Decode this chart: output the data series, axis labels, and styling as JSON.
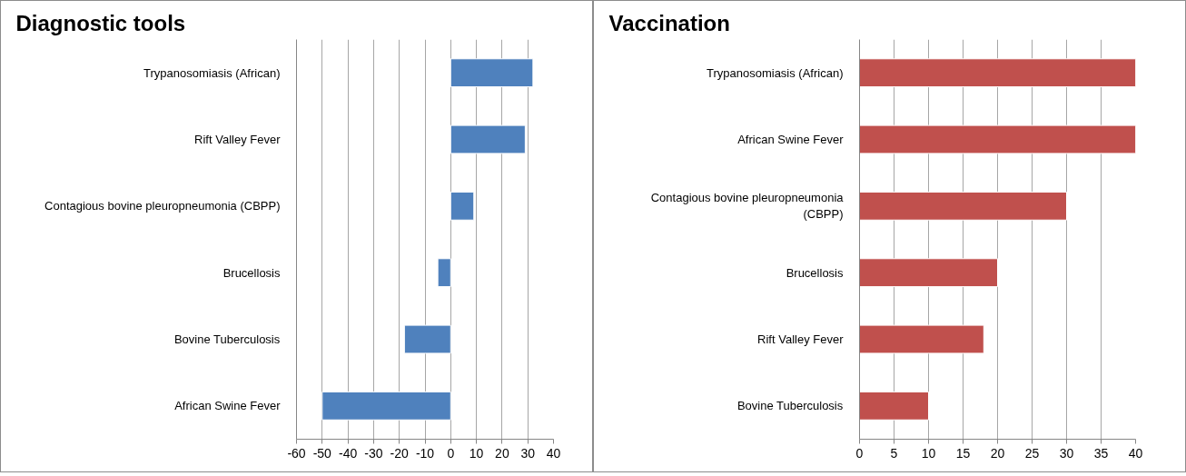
{
  "chart_data": [
    {
      "type": "bar",
      "orientation": "horizontal",
      "title": "Diagnostic tools",
      "categories": [
        "Trypanosomiasis (African)",
        "Rift Valley Fever",
        "Contagious bovine pleuropneumonia (CBPP)",
        "Brucellosis",
        "Bovine Tuberculosis",
        "African Swine Fever"
      ],
      "values": [
        32,
        29,
        9,
        -5,
        -18,
        -50
      ],
      "color": "#4f81bd",
      "xlim": [
        -60,
        40
      ],
      "xticks": [
        -60,
        -50,
        -40,
        -30,
        -20,
        -10,
        0,
        10,
        20,
        30,
        40
      ],
      "grid": "x"
    },
    {
      "type": "bar",
      "orientation": "horizontal",
      "title": "Vaccination",
      "categories": [
        "Trypanosomiasis (African)",
        "African Swine Fever",
        "Contagious bovine pleuropneumonia (CBPP)",
        "Brucellosis",
        "Rift Valley Fever",
        "Bovine Tuberculosis"
      ],
      "values": [
        40,
        40,
        30,
        20,
        18,
        10
      ],
      "color": "#c0504d",
      "xlim": [
        0,
        40
      ],
      "xticks": [
        0,
        5,
        10,
        15,
        20,
        25,
        30,
        35,
        40
      ],
      "grid": "x"
    }
  ]
}
